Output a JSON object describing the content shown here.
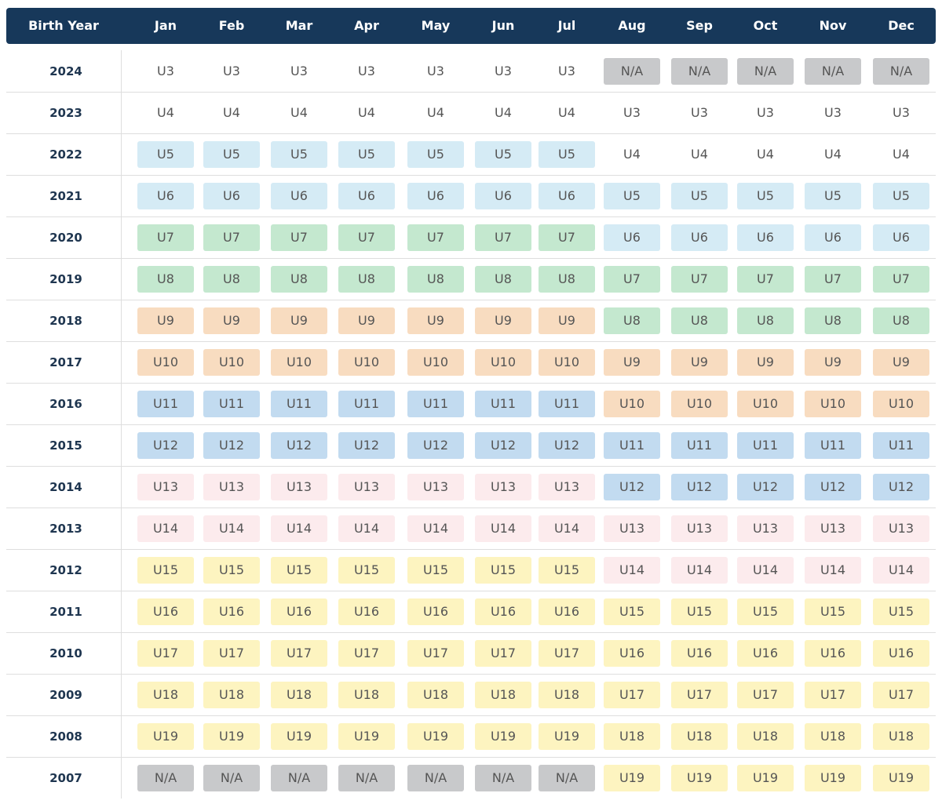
{
  "header": {
    "columns": [
      "Birth Year",
      "Jan",
      "Feb",
      "Mar",
      "Apr",
      "May",
      "Jun",
      "Jul",
      "Aug",
      "Sep",
      "Oct",
      "Nov",
      "Dec"
    ]
  },
  "rows": [
    {
      "year": "2024",
      "cells": [
        {
          "text": "U3"
        },
        {
          "text": "U3"
        },
        {
          "text": "U3"
        },
        {
          "text": "U3"
        },
        {
          "text": "U3"
        },
        {
          "text": "U3"
        },
        {
          "text": "U3"
        },
        {
          "text": "N/A",
          "fill": "#c8c9cb"
        },
        {
          "text": "N/A",
          "fill": "#c8c9cb"
        },
        {
          "text": "N/A",
          "fill": "#c8c9cb"
        },
        {
          "text": "N/A",
          "fill": "#c8c9cb"
        },
        {
          "text": "N/A",
          "fill": "#c8c9cb"
        }
      ]
    },
    {
      "year": "2023",
      "cells": [
        {
          "text": "U4"
        },
        {
          "text": "U4"
        },
        {
          "text": "U4"
        },
        {
          "text": "U4"
        },
        {
          "text": "U4"
        },
        {
          "text": "U4"
        },
        {
          "text": "U4"
        },
        {
          "text": "U3"
        },
        {
          "text": "U3"
        },
        {
          "text": "U3"
        },
        {
          "text": "U3"
        },
        {
          "text": "U3"
        }
      ]
    },
    {
      "year": "2022",
      "cells": [
        {
          "text": "U5",
          "fill": "#d5ebf5"
        },
        {
          "text": "U5",
          "fill": "#d5ebf5"
        },
        {
          "text": "U5",
          "fill": "#d5ebf5"
        },
        {
          "text": "U5",
          "fill": "#d5ebf5"
        },
        {
          "text": "U5",
          "fill": "#d5ebf5"
        },
        {
          "text": "U5",
          "fill": "#d5ebf5"
        },
        {
          "text": "U5",
          "fill": "#d5ebf5"
        },
        {
          "text": "U4"
        },
        {
          "text": "U4"
        },
        {
          "text": "U4"
        },
        {
          "text": "U4"
        },
        {
          "text": "U4"
        }
      ]
    },
    {
      "year": "2021",
      "cells": [
        {
          "text": "U6",
          "fill": "#d5ebf5"
        },
        {
          "text": "U6",
          "fill": "#d5ebf5"
        },
        {
          "text": "U6",
          "fill": "#d5ebf5"
        },
        {
          "text": "U6",
          "fill": "#d5ebf5"
        },
        {
          "text": "U6",
          "fill": "#d5ebf5"
        },
        {
          "text": "U6",
          "fill": "#d5ebf5"
        },
        {
          "text": "U6",
          "fill": "#d5ebf5"
        },
        {
          "text": "U5",
          "fill": "#d5ebf5"
        },
        {
          "text": "U5",
          "fill": "#d5ebf5"
        },
        {
          "text": "U5",
          "fill": "#d5ebf5"
        },
        {
          "text": "U5",
          "fill": "#d5ebf5"
        },
        {
          "text": "U5",
          "fill": "#d5ebf5"
        }
      ]
    },
    {
      "year": "2020",
      "cells": [
        {
          "text": "U7",
          "fill": "#c4e8cf"
        },
        {
          "text": "U7",
          "fill": "#c4e8cf"
        },
        {
          "text": "U7",
          "fill": "#c4e8cf"
        },
        {
          "text": "U7",
          "fill": "#c4e8cf"
        },
        {
          "text": "U7",
          "fill": "#c4e8cf"
        },
        {
          "text": "U7",
          "fill": "#c4e8cf"
        },
        {
          "text": "U7",
          "fill": "#c4e8cf"
        },
        {
          "text": "U6",
          "fill": "#d5ebf5"
        },
        {
          "text": "U6",
          "fill": "#d5ebf5"
        },
        {
          "text": "U6",
          "fill": "#d5ebf5"
        },
        {
          "text": "U6",
          "fill": "#d5ebf5"
        },
        {
          "text": "U6",
          "fill": "#d5ebf5"
        }
      ]
    },
    {
      "year": "2019",
      "cells": [
        {
          "text": "U8",
          "fill": "#c4e8cf"
        },
        {
          "text": "U8",
          "fill": "#c4e8cf"
        },
        {
          "text": "U8",
          "fill": "#c4e8cf"
        },
        {
          "text": "U8",
          "fill": "#c4e8cf"
        },
        {
          "text": "U8",
          "fill": "#c4e8cf"
        },
        {
          "text": "U8",
          "fill": "#c4e8cf"
        },
        {
          "text": "U8",
          "fill": "#c4e8cf"
        },
        {
          "text": "U7",
          "fill": "#c4e8cf"
        },
        {
          "text": "U7",
          "fill": "#c4e8cf"
        },
        {
          "text": "U7",
          "fill": "#c4e8cf"
        },
        {
          "text": "U7",
          "fill": "#c4e8cf"
        },
        {
          "text": "U7",
          "fill": "#c4e8cf"
        }
      ]
    },
    {
      "year": "2018",
      "cells": [
        {
          "text": "U9",
          "fill": "#f8dcc0"
        },
        {
          "text": "U9",
          "fill": "#f8dcc0"
        },
        {
          "text": "U9",
          "fill": "#f8dcc0"
        },
        {
          "text": "U9",
          "fill": "#f8dcc0"
        },
        {
          "text": "U9",
          "fill": "#f8dcc0"
        },
        {
          "text": "U9",
          "fill": "#f8dcc0"
        },
        {
          "text": "U9",
          "fill": "#f8dcc0"
        },
        {
          "text": "U8",
          "fill": "#c4e8cf"
        },
        {
          "text": "U8",
          "fill": "#c4e8cf"
        },
        {
          "text": "U8",
          "fill": "#c4e8cf"
        },
        {
          "text": "U8",
          "fill": "#c4e8cf"
        },
        {
          "text": "U8",
          "fill": "#c4e8cf"
        }
      ]
    },
    {
      "year": "2017",
      "cells": [
        {
          "text": "U10",
          "fill": "#f8dcc0"
        },
        {
          "text": "U10",
          "fill": "#f8dcc0"
        },
        {
          "text": "U10",
          "fill": "#f8dcc0"
        },
        {
          "text": "U10",
          "fill": "#f8dcc0"
        },
        {
          "text": "U10",
          "fill": "#f8dcc0"
        },
        {
          "text": "U10",
          "fill": "#f8dcc0"
        },
        {
          "text": "U10",
          "fill": "#f8dcc0"
        },
        {
          "text": "U9",
          "fill": "#f8dcc0"
        },
        {
          "text": "U9",
          "fill": "#f8dcc0"
        },
        {
          "text": "U9",
          "fill": "#f8dcc0"
        },
        {
          "text": "U9",
          "fill": "#f8dcc0"
        },
        {
          "text": "U9",
          "fill": "#f8dcc0"
        }
      ]
    },
    {
      "year": "2016",
      "cells": [
        {
          "text": "U11",
          "fill": "#c2dbf0"
        },
        {
          "text": "U11",
          "fill": "#c2dbf0"
        },
        {
          "text": "U11",
          "fill": "#c2dbf0"
        },
        {
          "text": "U11",
          "fill": "#c2dbf0"
        },
        {
          "text": "U11",
          "fill": "#c2dbf0"
        },
        {
          "text": "U11",
          "fill": "#c2dbf0"
        },
        {
          "text": "U11",
          "fill": "#c2dbf0"
        },
        {
          "text": "U10",
          "fill": "#f8dcc0"
        },
        {
          "text": "U10",
          "fill": "#f8dcc0"
        },
        {
          "text": "U10",
          "fill": "#f8dcc0"
        },
        {
          "text": "U10",
          "fill": "#f8dcc0"
        },
        {
          "text": "U10",
          "fill": "#f8dcc0"
        }
      ]
    },
    {
      "year": "2015",
      "cells": [
        {
          "text": "U12",
          "fill": "#c2dbf0"
        },
        {
          "text": "U12",
          "fill": "#c2dbf0"
        },
        {
          "text": "U12",
          "fill": "#c2dbf0"
        },
        {
          "text": "U12",
          "fill": "#c2dbf0"
        },
        {
          "text": "U12",
          "fill": "#c2dbf0"
        },
        {
          "text": "U12",
          "fill": "#c2dbf0"
        },
        {
          "text": "U12",
          "fill": "#c2dbf0"
        },
        {
          "text": "U11",
          "fill": "#c2dbf0"
        },
        {
          "text": "U11",
          "fill": "#c2dbf0"
        },
        {
          "text": "U11",
          "fill": "#c2dbf0"
        },
        {
          "text": "U11",
          "fill": "#c2dbf0"
        },
        {
          "text": "U11",
          "fill": "#c2dbf0"
        }
      ]
    },
    {
      "year": "2014",
      "cells": [
        {
          "text": "U13",
          "fill": "#fcebed"
        },
        {
          "text": "U13",
          "fill": "#fcebed"
        },
        {
          "text": "U13",
          "fill": "#fcebed"
        },
        {
          "text": "U13",
          "fill": "#fcebed"
        },
        {
          "text": "U13",
          "fill": "#fcebed"
        },
        {
          "text": "U13",
          "fill": "#fcebed"
        },
        {
          "text": "U13",
          "fill": "#fcebed"
        },
        {
          "text": "U12",
          "fill": "#c2dbf0"
        },
        {
          "text": "U12",
          "fill": "#c2dbf0"
        },
        {
          "text": "U12",
          "fill": "#c2dbf0"
        },
        {
          "text": "U12",
          "fill": "#c2dbf0"
        },
        {
          "text": "U12",
          "fill": "#c2dbf0"
        }
      ]
    },
    {
      "year": "2013",
      "cells": [
        {
          "text": "U14",
          "fill": "#fcebed"
        },
        {
          "text": "U14",
          "fill": "#fcebed"
        },
        {
          "text": "U14",
          "fill": "#fcebed"
        },
        {
          "text": "U14",
          "fill": "#fcebed"
        },
        {
          "text": "U14",
          "fill": "#fcebed"
        },
        {
          "text": "U14",
          "fill": "#fcebed"
        },
        {
          "text": "U14",
          "fill": "#fcebed"
        },
        {
          "text": "U13",
          "fill": "#fcebed"
        },
        {
          "text": "U13",
          "fill": "#fcebed"
        },
        {
          "text": "U13",
          "fill": "#fcebed"
        },
        {
          "text": "U13",
          "fill": "#fcebed"
        },
        {
          "text": "U13",
          "fill": "#fcebed"
        }
      ]
    },
    {
      "year": "2012",
      "cells": [
        {
          "text": "U15",
          "fill": "#fdf4c0"
        },
        {
          "text": "U15",
          "fill": "#fdf4c0"
        },
        {
          "text": "U15",
          "fill": "#fdf4c0"
        },
        {
          "text": "U15",
          "fill": "#fdf4c0"
        },
        {
          "text": "U15",
          "fill": "#fdf4c0"
        },
        {
          "text": "U15",
          "fill": "#fdf4c0"
        },
        {
          "text": "U15",
          "fill": "#fdf4c0"
        },
        {
          "text": "U14",
          "fill": "#fcebed"
        },
        {
          "text": "U14",
          "fill": "#fcebed"
        },
        {
          "text": "U14",
          "fill": "#fcebed"
        },
        {
          "text": "U14",
          "fill": "#fcebed"
        },
        {
          "text": "U14",
          "fill": "#fcebed"
        }
      ]
    },
    {
      "year": "2011",
      "cells": [
        {
          "text": "U16",
          "fill": "#fdf4c0"
        },
        {
          "text": "U16",
          "fill": "#fdf4c0"
        },
        {
          "text": "U16",
          "fill": "#fdf4c0"
        },
        {
          "text": "U16",
          "fill": "#fdf4c0"
        },
        {
          "text": "U16",
          "fill": "#fdf4c0"
        },
        {
          "text": "U16",
          "fill": "#fdf4c0"
        },
        {
          "text": "U16",
          "fill": "#fdf4c0"
        },
        {
          "text": "U15",
          "fill": "#fdf4c0"
        },
        {
          "text": "U15",
          "fill": "#fdf4c0"
        },
        {
          "text": "U15",
          "fill": "#fdf4c0"
        },
        {
          "text": "U15",
          "fill": "#fdf4c0"
        },
        {
          "text": "U15",
          "fill": "#fdf4c0"
        }
      ]
    },
    {
      "year": "2010",
      "cells": [
        {
          "text": "U17",
          "fill": "#fdf4c0"
        },
        {
          "text": "U17",
          "fill": "#fdf4c0"
        },
        {
          "text": "U17",
          "fill": "#fdf4c0"
        },
        {
          "text": "U17",
          "fill": "#fdf4c0"
        },
        {
          "text": "U17",
          "fill": "#fdf4c0"
        },
        {
          "text": "U17",
          "fill": "#fdf4c0"
        },
        {
          "text": "U17",
          "fill": "#fdf4c0"
        },
        {
          "text": "U16",
          "fill": "#fdf4c0"
        },
        {
          "text": "U16",
          "fill": "#fdf4c0"
        },
        {
          "text": "U16",
          "fill": "#fdf4c0"
        },
        {
          "text": "U16",
          "fill": "#fdf4c0"
        },
        {
          "text": "U16",
          "fill": "#fdf4c0"
        }
      ]
    },
    {
      "year": "2009",
      "cells": [
        {
          "text": "U18",
          "fill": "#fdf4c0"
        },
        {
          "text": "U18",
          "fill": "#fdf4c0"
        },
        {
          "text": "U18",
          "fill": "#fdf4c0"
        },
        {
          "text": "U18",
          "fill": "#fdf4c0"
        },
        {
          "text": "U18",
          "fill": "#fdf4c0"
        },
        {
          "text": "U18",
          "fill": "#fdf4c0"
        },
        {
          "text": "U18",
          "fill": "#fdf4c0"
        },
        {
          "text": "U17",
          "fill": "#fdf4c0"
        },
        {
          "text": "U17",
          "fill": "#fdf4c0"
        },
        {
          "text": "U17",
          "fill": "#fdf4c0"
        },
        {
          "text": "U17",
          "fill": "#fdf4c0"
        },
        {
          "text": "U17",
          "fill": "#fdf4c0"
        }
      ]
    },
    {
      "year": "2008",
      "cells": [
        {
          "text": "U19",
          "fill": "#fdf4c0"
        },
        {
          "text": "U19",
          "fill": "#fdf4c0"
        },
        {
          "text": "U19",
          "fill": "#fdf4c0"
        },
        {
          "text": "U19",
          "fill": "#fdf4c0"
        },
        {
          "text": "U19",
          "fill": "#fdf4c0"
        },
        {
          "text": "U19",
          "fill": "#fdf4c0"
        },
        {
          "text": "U19",
          "fill": "#fdf4c0"
        },
        {
          "text": "U18",
          "fill": "#fdf4c0"
        },
        {
          "text": "U18",
          "fill": "#fdf4c0"
        },
        {
          "text": "U18",
          "fill": "#fdf4c0"
        },
        {
          "text": "U18",
          "fill": "#fdf4c0"
        },
        {
          "text": "U18",
          "fill": "#fdf4c0"
        }
      ]
    },
    {
      "year": "2007",
      "cells": [
        {
          "text": "N/A",
          "fill": "#c8c9cb"
        },
        {
          "text": "N/A",
          "fill": "#c8c9cb"
        },
        {
          "text": "N/A",
          "fill": "#c8c9cb"
        },
        {
          "text": "N/A",
          "fill": "#c8c9cb"
        },
        {
          "text": "N/A",
          "fill": "#c8c9cb"
        },
        {
          "text": "N/A",
          "fill": "#c8c9cb"
        },
        {
          "text": "N/A",
          "fill": "#c8c9cb"
        },
        {
          "text": "U19",
          "fill": "#fdf4c0"
        },
        {
          "text": "U19",
          "fill": "#fdf4c0"
        },
        {
          "text": "U19",
          "fill": "#fdf4c0"
        },
        {
          "text": "U19",
          "fill": "#fdf4c0"
        },
        {
          "text": "U19",
          "fill": "#fdf4c0"
        }
      ]
    }
  ]
}
